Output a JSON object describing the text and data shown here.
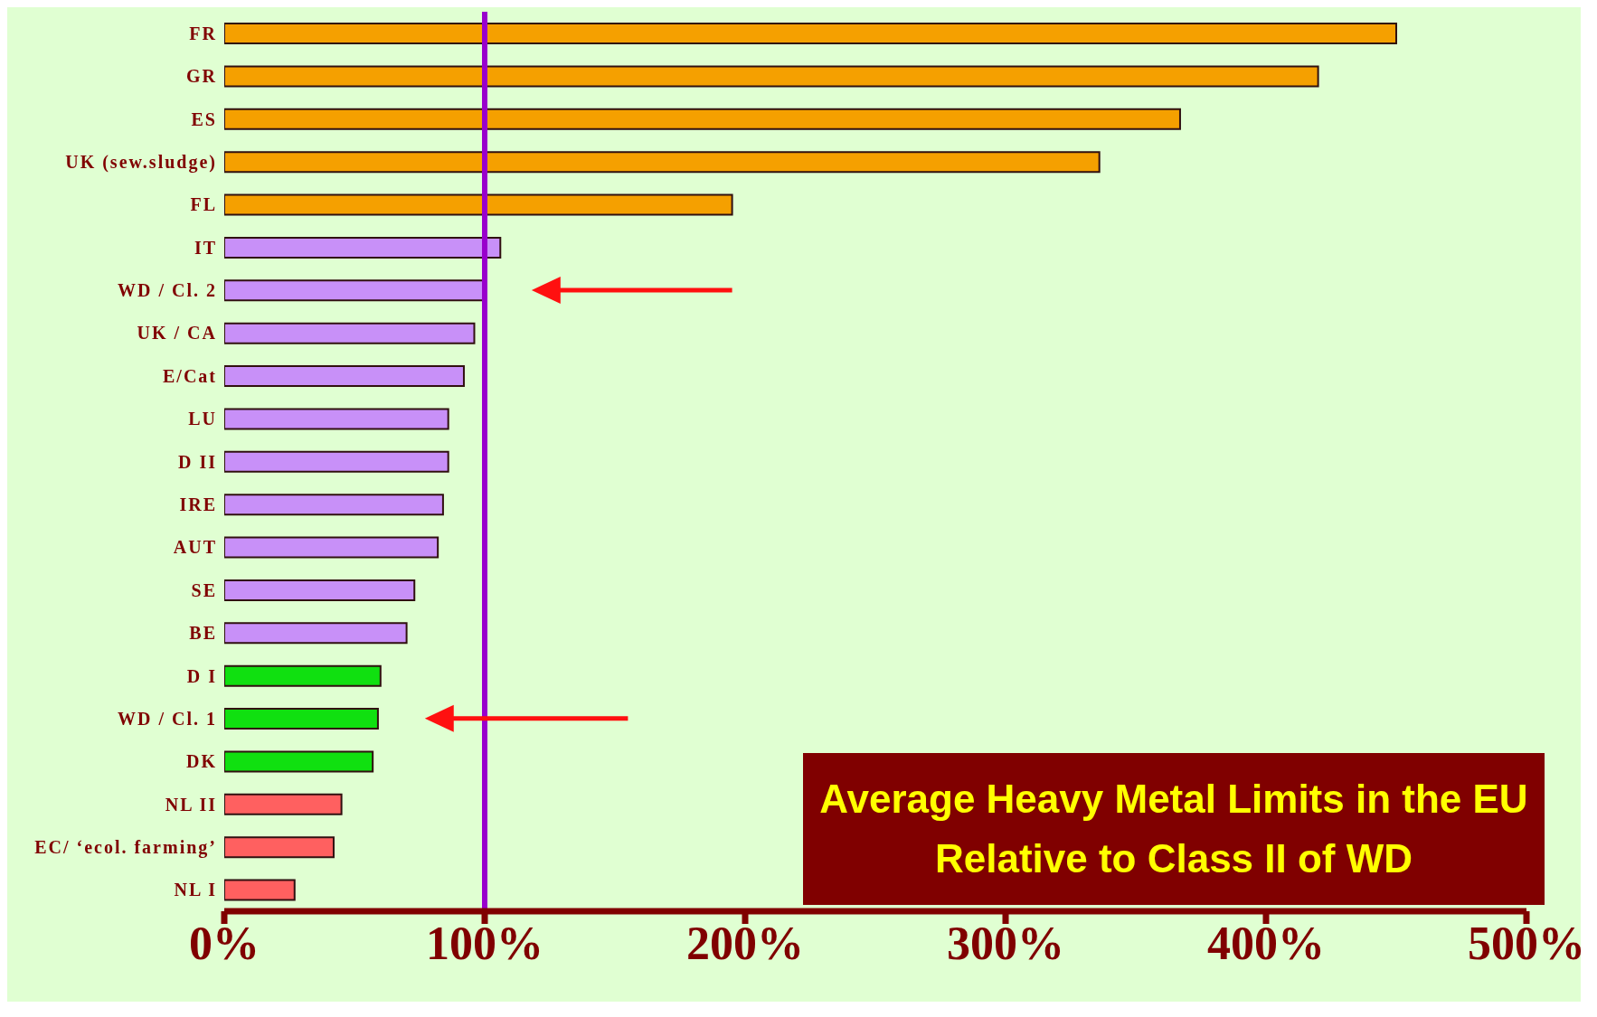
{
  "chart_data": {
    "type": "bar",
    "orientation": "horizontal",
    "title": "Average Heavy Metal Limits in the EU Relative to Class II of WD",
    "categories": [
      "FR",
      "GR",
      "ES",
      "UK (sew.sludge)",
      "FL",
      "IT",
      "WD / Cl. 2",
      "UK / CA",
      "E/Cat",
      "LU",
      "D II",
      "IRE",
      "AUT",
      "SE",
      "BE",
      "D I",
      "WD / Cl. 1",
      "DK",
      "NL II",
      "EC/ ‘ecol. farming’",
      "NL I"
    ],
    "values": [
      450,
      420,
      367,
      336,
      195,
      106,
      100,
      96,
      92,
      86,
      86,
      84,
      82,
      73,
      70,
      60,
      59,
      57,
      45,
      42,
      27
    ],
    "colors": [
      "#f5a000",
      "#f5a000",
      "#f5a000",
      "#f5a000",
      "#f5a000",
      "#c890f8",
      "#c890f8",
      "#c890f8",
      "#c890f8",
      "#c890f8",
      "#c890f8",
      "#c890f8",
      "#c890f8",
      "#c890f8",
      "#c890f8",
      "#10e010",
      "#10e010",
      "#10e010",
      "#ff6060",
      "#ff6060",
      "#ff6060"
    ],
    "xlim": [
      0,
      500
    ],
    "xticks": [
      {
        "value": 0,
        "label": "0%"
      },
      {
        "value": 100,
        "label": "100%"
      },
      {
        "value": 200,
        "label": "200%"
      },
      {
        "value": 300,
        "label": "300%"
      },
      {
        "value": 400,
        "label": "400%"
      },
      {
        "value": 500,
        "label": "500%"
      }
    ],
    "ref_lines": [
      {
        "axis": "x",
        "value": 100,
        "color": "#9900cc"
      }
    ],
    "legend": false
  }
}
